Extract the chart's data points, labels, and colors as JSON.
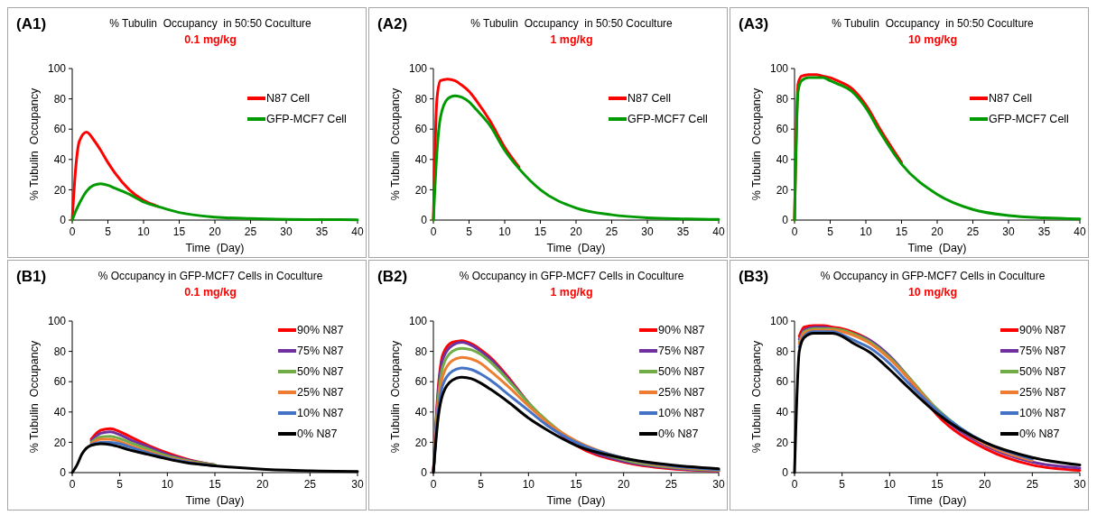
{
  "chart_data": [
    {
      "type": "line",
      "title": "% Tubulin  Occupancy  in 50:50 Coculture",
      "subtitle": "0.1 mg/kg",
      "annotations": [
        "(A1)"
      ],
      "xlabel": "Time  (Day)",
      "ylabel": "% Tubulin  Occupancy",
      "xlim": [
        0,
        40
      ],
      "xticks": [
        0,
        5,
        10,
        15,
        20,
        25,
        30,
        35,
        40
      ],
      "ylim": [
        0,
        100
      ],
      "yticks": [
        0,
        20,
        40,
        60,
        80,
        100
      ],
      "legend": "right",
      "x": [
        0,
        0.5,
        1,
        2,
        3,
        4,
        5,
        6,
        8,
        10,
        12,
        15,
        20,
        25,
        30,
        35,
        40
      ],
      "series": [
        {
          "name": "N87 Cell",
          "color": "#ff0000",
          "values": [
            0,
            35,
            52,
            58,
            53,
            46,
            38,
            31,
            20,
            13,
            9,
            null,
            null,
            null,
            null,
            null,
            null
          ]
        },
        {
          "name": "GFP-MCF7 Cell",
          "color": "#009900",
          "values": [
            0,
            6,
            11,
            19,
            23,
            24,
            23,
            21,
            17,
            12,
            9,
            5,
            2,
            1,
            0.5,
            0.3,
            0.2
          ]
        }
      ]
    },
    {
      "type": "line",
      "title": "% Tubulin  Occupancy  in 50:50 Coculture",
      "subtitle": "1 mg/kg",
      "annotations": [
        "(A2)"
      ],
      "xlabel": "Time  (Day)",
      "ylabel": "% Tubulin  Occupancy",
      "xlim": [
        0,
        40
      ],
      "xticks": [
        0,
        5,
        10,
        15,
        20,
        25,
        30,
        35,
        40
      ],
      "ylim": [
        0,
        100
      ],
      "yticks": [
        0,
        20,
        40,
        60,
        80,
        100
      ],
      "legend": "right",
      "x": [
        0,
        0.5,
        1,
        2,
        3,
        4,
        5,
        6,
        8,
        10,
        12,
        15,
        20,
        25,
        30,
        35,
        40
      ],
      "series": [
        {
          "name": "N87 Cell",
          "color": "#ff0000",
          "values": [
            0,
            80,
            92,
            93,
            92,
            89,
            85,
            79,
            65,
            48,
            35,
            null,
            null,
            null,
            null,
            null,
            null
          ]
        },
        {
          "name": "GFP-MCF7 Cell",
          "color": "#009900",
          "values": [
            0,
            45,
            68,
            80,
            82,
            81,
            78,
            73,
            62,
            46,
            34,
            20,
            8,
            3.5,
            1.5,
            0.8,
            0.4
          ]
        }
      ]
    },
    {
      "type": "line",
      "title": "% Tubulin  Occupancy  in 50:50 Coculture",
      "subtitle": "10 mg/kg",
      "annotations": [
        "(A3)"
      ],
      "xlabel": "Time  (Day)",
      "ylabel": "% Tubulin  Occupancy",
      "xlim": [
        0,
        40
      ],
      "xticks": [
        0,
        5,
        10,
        15,
        20,
        25,
        30,
        35,
        40
      ],
      "ylim": [
        0,
        100
      ],
      "yticks": [
        0,
        20,
        40,
        60,
        80,
        100
      ],
      "legend": "right",
      "x": [
        0,
        0.5,
        1,
        2,
        3,
        4,
        5,
        6,
        8,
        10,
        12,
        15,
        20,
        25,
        30,
        35,
        40
      ],
      "series": [
        {
          "name": "N87 Cell",
          "color": "#ff0000",
          "values": [
            0,
            90,
            95,
            96,
            96,
            95,
            94,
            92,
            87,
            76,
            60,
            38,
            null,
            null,
            null,
            null,
            null
          ]
        },
        {
          "name": "GFP-MCF7 Cell",
          "color": "#009900",
          "values": [
            0,
            85,
            92,
            94,
            94,
            94,
            92,
            90,
            85,
            74,
            58,
            37,
            17,
            7,
            3,
            1.5,
            0.8
          ]
        }
      ]
    },
    {
      "type": "line",
      "title": "% Occupancy in GFP-MCF7 Cells in Coculture",
      "subtitle": "0.1 mg/kg",
      "annotations": [
        "(B1)"
      ],
      "xlabel": "Time  (Day)",
      "ylabel": "% Tubulin  Occupancy",
      "xlim": [
        0,
        30
      ],
      "xticks": [
        0,
        5,
        10,
        15,
        20,
        25,
        30
      ],
      "ylim": [
        0,
        100
      ],
      "yticks": [
        0,
        20,
        40,
        60,
        80,
        100
      ],
      "legend": "right",
      "x": [
        0,
        0.5,
        1,
        2,
        3,
        4,
        5,
        6,
        8,
        10,
        12,
        15,
        20,
        25,
        30
      ],
      "series": [
        {
          "name": "90% N87",
          "color": "#ff0000",
          "values": [
            null,
            null,
            null,
            22,
            28,
            29,
            27,
            24,
            18,
            13,
            9,
            5,
            null,
            null,
            null
          ]
        },
        {
          "name": "75% N87",
          "color": "#7030a0",
          "values": [
            null,
            null,
            null,
            21,
            26,
            27,
            25,
            22,
            17,
            12,
            8.5,
            5,
            null,
            null,
            null
          ]
        },
        {
          "name": "50% N87",
          "color": "#70ad47",
          "values": [
            null,
            null,
            null,
            20,
            23.5,
            24,
            22.5,
            20,
            15.5,
            11,
            8,
            5,
            null,
            null,
            null
          ]
        },
        {
          "name": "25% N87",
          "color": "#ed7d31",
          "values": [
            null,
            null,
            null,
            19,
            22,
            22,
            20.5,
            18,
            14,
            10,
            7.5,
            4.5,
            null,
            null,
            null
          ]
        },
        {
          "name": "10% N87",
          "color": "#4472c4",
          "values": [
            null,
            null,
            null,
            18.5,
            20,
            20,
            19,
            17,
            13,
            9.5,
            7,
            4.5,
            null,
            null,
            null
          ]
        },
        {
          "name": "0% N87",
          "color": "#000000",
          "values": [
            0,
            5,
            12,
            18,
            19,
            18.5,
            17,
            15,
            12,
            9,
            6.5,
            4.5,
            2.2,
            1.2,
            0.8
          ]
        }
      ]
    },
    {
      "type": "line",
      "title": "% Occupancy in GFP-MCF7 Cells in Coculture",
      "subtitle": "1 mg/kg",
      "annotations": [
        "(B2)"
      ],
      "xlabel": "Time  (Day)",
      "ylabel": "% Tubulin  Occupancy",
      "xlim": [
        0,
        30
      ],
      "xticks": [
        0,
        5,
        10,
        15,
        20,
        25,
        30
      ],
      "ylim": [
        0,
        100
      ],
      "yticks": [
        0,
        20,
        40,
        60,
        80,
        100
      ],
      "legend": "right",
      "x": [
        0,
        0.5,
        1,
        2,
        3,
        4,
        5,
        6,
        8,
        10,
        12,
        15,
        20,
        25,
        30
      ],
      "series": [
        {
          "name": "90% N87",
          "color": "#ff0000",
          "values": [
            0,
            55,
            78,
            86,
            87,
            85,
            81,
            76,
            62,
            46,
            33,
            18,
            7,
            2.5,
            1
          ]
        },
        {
          "name": "75% N87",
          "color": "#7030a0",
          "values": [
            0,
            52,
            75,
            84,
            86,
            84,
            80,
            75,
            61,
            46,
            33,
            19,
            7.5,
            3,
            1.2
          ]
        },
        {
          "name": "50% N87",
          "color": "#70ad47",
          "values": [
            0,
            48,
            70,
            80,
            82,
            81,
            78,
            73,
            60,
            46,
            34,
            20,
            8.5,
            3.5,
            1.5
          ]
        },
        {
          "name": "25% N87",
          "color": "#ed7d31",
          "values": [
            0,
            44,
            64,
            74,
            76,
            75,
            72,
            67,
            56,
            44,
            33,
            21,
            9.5,
            4,
            1.8
          ]
        },
        {
          "name": "10% N87",
          "color": "#4472c4",
          "values": [
            0,
            40,
            58,
            67,
            69,
            68,
            65,
            61,
            51,
            41,
            31,
            20,
            9.5,
            4.5,
            2
          ]
        },
        {
          "name": "0% N87",
          "color": "#000000",
          "values": [
            0,
            36,
            52,
            61,
            63,
            62,
            59,
            55,
            46,
            36,
            28,
            18,
            9.5,
            5,
            2.5
          ]
        }
      ]
    },
    {
      "type": "line",
      "title": "% Occupancy in GFP-MCF7 Cells in Coculture",
      "subtitle": "10 mg/kg",
      "annotations": [
        "(B3)"
      ],
      "xlabel": "Time  (Day)",
      "ylabel": "% Tubulin  Occupancy",
      "xlim": [
        0,
        30
      ],
      "xticks": [
        0,
        5,
        10,
        15,
        20,
        25,
        30
      ],
      "ylim": [
        0,
        100
      ],
      "yticks": [
        0,
        20,
        40,
        60,
        80,
        100
      ],
      "legend": "right",
      "x": [
        0,
        0.5,
        1,
        2,
        3,
        4,
        5,
        6,
        8,
        10,
        12,
        15,
        20,
        25,
        30
      ],
      "series": [
        {
          "name": "90% N87",
          "color": "#ff0000",
          "values": [
            null,
            90,
            96,
            97,
            97,
            96,
            95,
            93,
            87,
            76,
            62,
            38,
            16,
            5,
            1.5
          ]
        },
        {
          "name": "75% N87",
          "color": "#7030a0",
          "values": [
            null,
            88,
            94,
            96,
            96,
            95,
            94,
            92,
            87,
            77,
            63,
            40,
            18,
            7,
            3
          ]
        },
        {
          "name": "50% N87",
          "color": "#70ad47",
          "values": [
            null,
            86,
            93,
            95,
            95,
            95,
            94,
            92,
            86,
            76,
            63,
            42,
            19,
            null,
            null
          ]
        },
        {
          "name": "25% N87",
          "color": "#ed7d31",
          "values": [
            null,
            85,
            92,
            94,
            94,
            94,
            93,
            91,
            85,
            75,
            62,
            41,
            19,
            8,
            null
          ]
        },
        {
          "name": "10% N87",
          "color": "#4472c4",
          "values": [
            null,
            83,
            90,
            93,
            93,
            93,
            91,
            88,
            82,
            72,
            59,
            41,
            20,
            9,
            null
          ]
        },
        {
          "name": "0% N87",
          "color": "#000000",
          "values": [
            0,
            80,
            89,
            92,
            92,
            92,
            90,
            86,
            79,
            68,
            56,
            39,
            20,
            10,
            5
          ]
        }
      ]
    }
  ]
}
